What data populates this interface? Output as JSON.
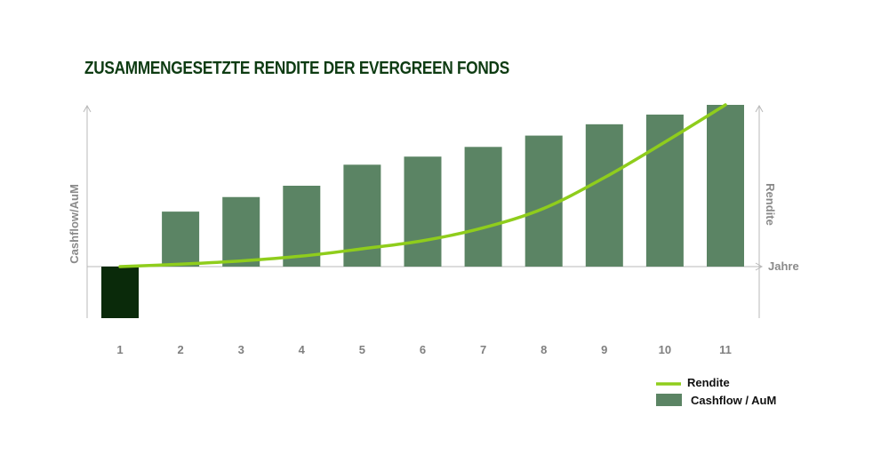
{
  "chart_data": {
    "type": "bar",
    "title": "ZUSAMMENGESETZTE RENDITE DER EVERGREEN FONDS",
    "xlabel": "Jahre",
    "ylabel": "Cashflow/AuM",
    "y2label": "Rendite",
    "categories": [
      "1",
      "2",
      "3",
      "4",
      "5",
      "6",
      "7",
      "8",
      "9",
      "10",
      "11"
    ],
    "ylim": [
      -0.32,
      1.0
    ],
    "y2lim": [
      0,
      1.0
    ],
    "series": [
      {
        "name": "Cashflow / AuM",
        "type": "bar",
        "color": "#5b8464",
        "negative_color": "#0a2a0a",
        "values": [
          -0.32,
          0.34,
          0.43,
          0.5,
          0.63,
          0.68,
          0.74,
          0.81,
          0.88,
          0.94,
          1.0
        ]
      },
      {
        "name": "Rendite",
        "type": "line",
        "color": "#8fcd1c",
        "values": [
          0.0,
          0.015,
          0.035,
          0.065,
          0.11,
          0.16,
          0.24,
          0.36,
          0.55,
          0.77,
          1.0
        ]
      }
    ],
    "legend_position": "bottom-right",
    "grid": false
  },
  "colors": {
    "title": "#0d3b12",
    "axis": "#b8b8b8"
  }
}
